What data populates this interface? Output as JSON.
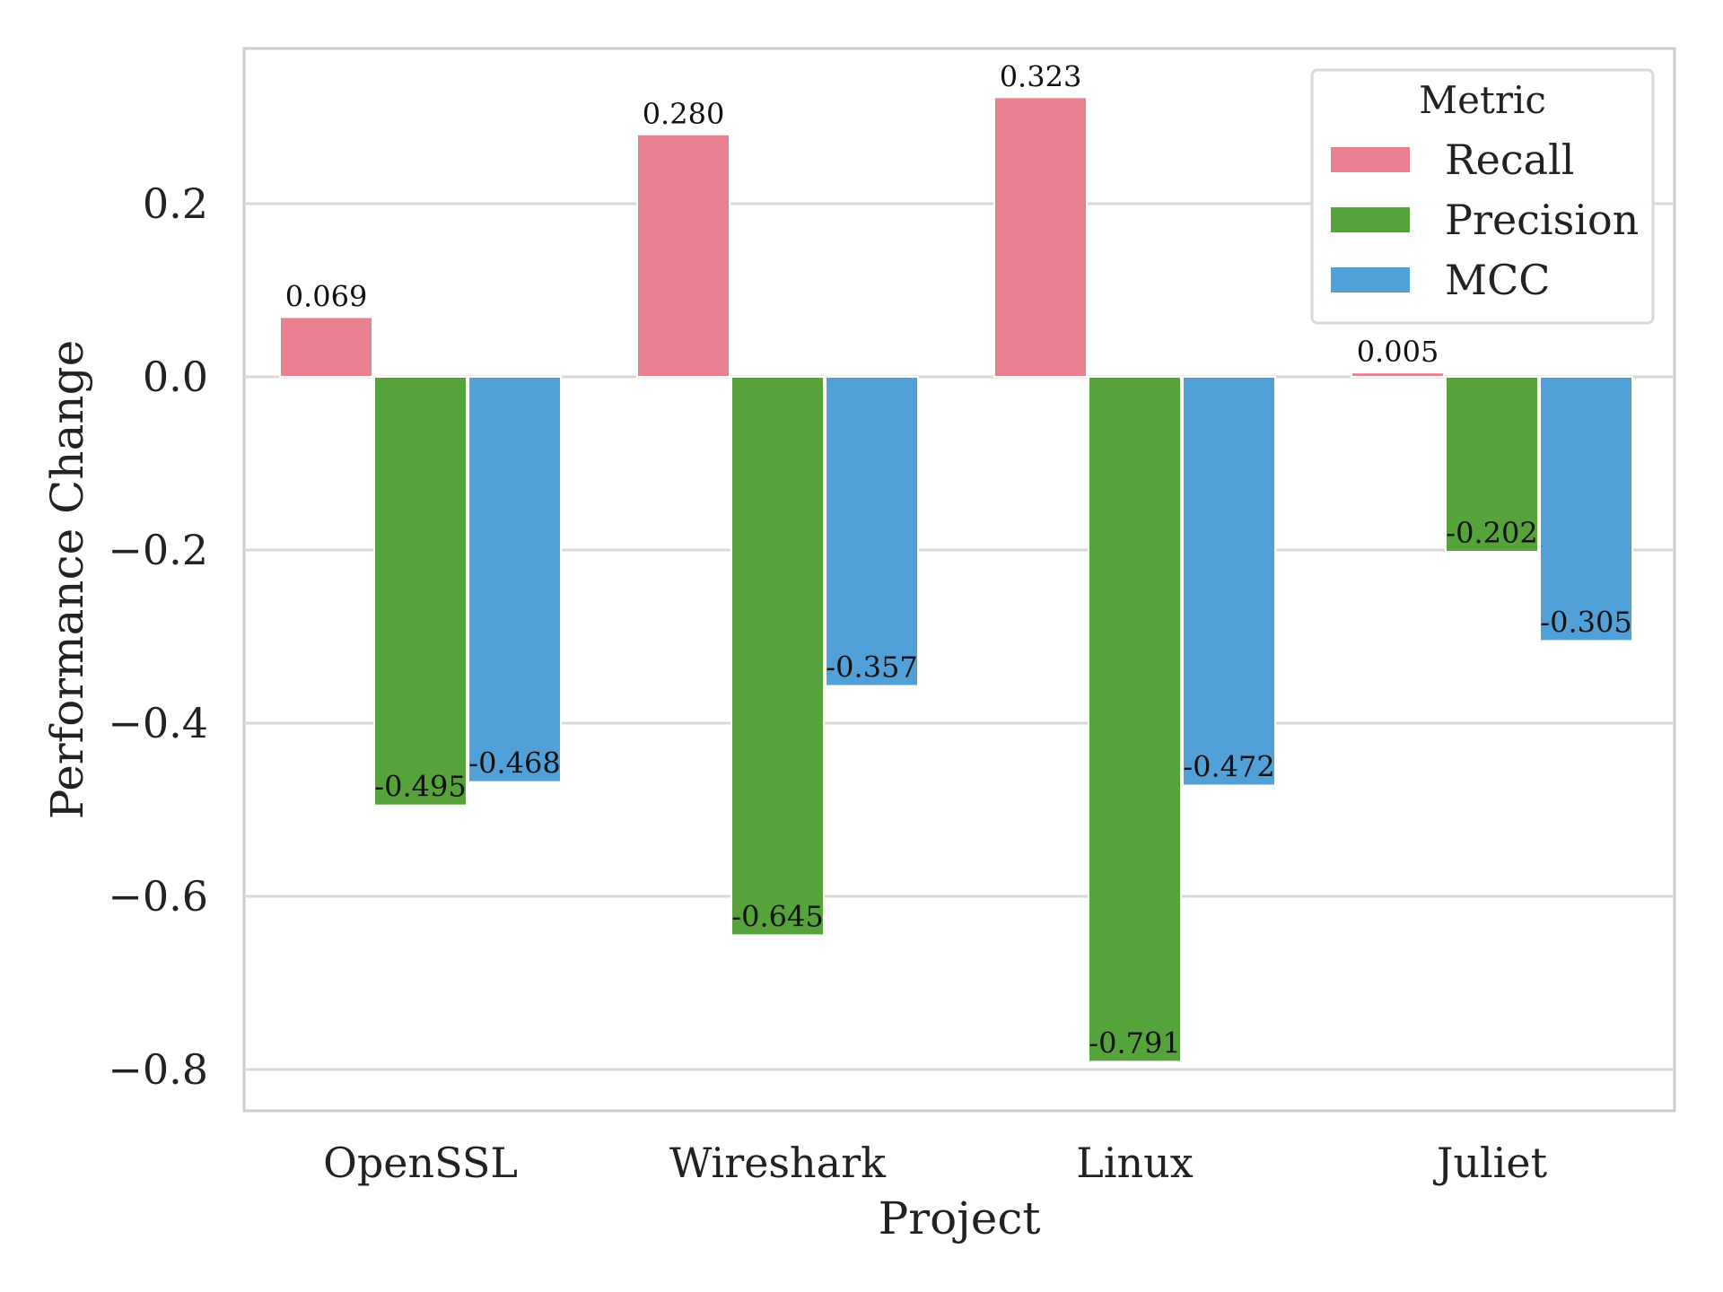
{
  "chart_data": {
    "type": "bar",
    "title": "",
    "xlabel": "Project",
    "ylabel": "Performance Change",
    "categories": [
      "OpenSSL",
      "Wireshark",
      "Linux",
      "Juliet"
    ],
    "series": [
      {
        "name": "Recall",
        "color": "#e8808f",
        "values": [
          0.069,
          0.28,
          0.323,
          0.005
        ],
        "labels": [
          "0.069",
          "0.280",
          "0.323",
          "0.005"
        ]
      },
      {
        "name": "Precision",
        "color": "#55a33a",
        "values": [
          -0.495,
          -0.645,
          -0.791,
          -0.202
        ],
        "labels": [
          "-0.495",
          "-0.645",
          "-0.791",
          "-0.202"
        ]
      },
      {
        "name": "MCC",
        "color": "#52a0d8",
        "values": [
          -0.468,
          -0.357,
          -0.472,
          -0.305
        ],
        "labels": [
          "-0.468",
          "-0.357",
          "-0.472",
          "-0.305"
        ]
      }
    ],
    "yticks": [
      0.2,
      0.0,
      -0.2,
      -0.4,
      -0.6,
      -0.8
    ],
    "ytick_labels": [
      "0.2",
      "0.0",
      "−0.2",
      "−0.4",
      "−0.6",
      "−0.8"
    ],
    "ylim": [
      -0.85,
      0.38
    ],
    "grid": true,
    "legend": {
      "title": "Metric",
      "position": "top-right"
    }
  }
}
